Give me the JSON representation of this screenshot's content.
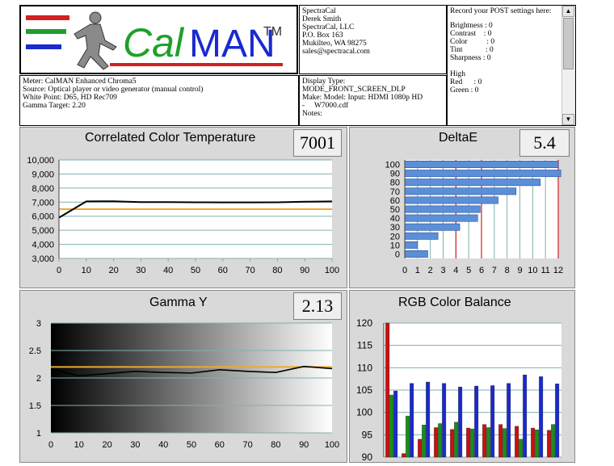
{
  "header": {
    "logo_text_cal": "Cal",
    "logo_text_man": "MAN",
    "logo_tm": "TM",
    "contact": [
      "SpectraCal",
      "Derek Smith",
      "SpectraCal, LLC",
      "P.O. Box 163",
      "Mukilteo, WA 98275",
      "sales@spectracal.com"
    ],
    "post_settings_title": "Record your POST settings here:",
    "post_settings": [
      "Brightness : 0",
      "Contrast    : 0",
      "Color          : 0",
      "Tint            : 0",
      "Sharpness : 0",
      "",
      "High",
      "Red      : 0",
      "Green : 0"
    ],
    "meter_info": [
      "Meter: CalMAN Enhanced Chroma5",
      "Source: Optical player or video generator (manual control)",
      "White Point: D65, HD Rec709",
      "Gamma Target: 2.20"
    ],
    "display_info": [
      "Display Type:",
      "MODE_FRONT_SCREEN_DLP",
      "Make: Model: Input: HDMI 1080p HD",
      "-     W7000.cdf",
      "Notes:"
    ]
  },
  "colors": {
    "panel_bg": "#d9d9d9",
    "grid": "#7fb0b0",
    "target": "#f0a830",
    "line": "#000000",
    "bar_blue": "#5b8fd8",
    "red_line": "#d42020",
    "rgb_red": "#cc1010",
    "rgb_green": "#189018",
    "rgb_blue": "#1a2ad0"
  },
  "panels": {
    "cct": {
      "title": "Correlated Color Temperature",
      "readout": "7001"
    },
    "deltae": {
      "title": "DeltaE",
      "readout": "5.4"
    },
    "gamma": {
      "title": "Gamma Y",
      "readout": "2.13"
    },
    "rgb": {
      "title": "RGB Color Balance"
    }
  },
  "chart_data": [
    {
      "type": "line",
      "title": "Correlated Color Temperature",
      "x": [
        0,
        10,
        20,
        30,
        40,
        50,
        60,
        70,
        80,
        90,
        100
      ],
      "xticks": [
        "0",
        "10",
        "20",
        "30",
        "40",
        "50",
        "60",
        "70",
        "80",
        "90",
        "100"
      ],
      "yticks": [
        "3,000",
        "4,000",
        "5,000",
        "6,000",
        "7,000",
        "8,000",
        "9,000",
        "10,000"
      ],
      "ylim": [
        3000,
        10000
      ],
      "series": [
        {
          "values": [
            5900,
            7050,
            7060,
            7000,
            7000,
            6990,
            6980,
            6980,
            6990,
            7030,
            7050
          ]
        }
      ],
      "target": 6500
    },
    {
      "type": "bar",
      "title": "DeltaE",
      "categories": [
        "0",
        "10",
        "20",
        "30",
        "40",
        "50",
        "60",
        "70",
        "80",
        "90",
        "100"
      ],
      "values": [
        1.8,
        1.0,
        2.6,
        4.3,
        5.7,
        5.9,
        7.3,
        8.7,
        10.6,
        12.2,
        12.0
      ],
      "xticks": [
        "0",
        "1",
        "2",
        "3",
        "4",
        "5",
        "6",
        "7",
        "8",
        "9",
        "10",
        "11",
        "12"
      ],
      "xlim": [
        0,
        12
      ],
      "thresholds": [
        4,
        6,
        12
      ]
    },
    {
      "type": "line",
      "title": "Gamma Y",
      "x": [
        0,
        10,
        20,
        30,
        40,
        50,
        60,
        70,
        80,
        90,
        100
      ],
      "xticks": [
        "0",
        "10",
        "20",
        "30",
        "40",
        "50",
        "60",
        "70",
        "80",
        "90",
        "100"
      ],
      "yticks": [
        "1",
        "1.5",
        "2",
        "2.5",
        "3"
      ],
      "ylim": [
        1,
        3
      ],
      "series": [
        {
          "values": [
            2.16,
            2.04,
            2.08,
            2.12,
            2.1,
            2.09,
            2.15,
            2.12,
            2.1,
            2.21,
            2.17
          ]
        }
      ],
      "target": 2.2
    },
    {
      "type": "bar",
      "title": "RGB Color Balance",
      "categories": [
        "0",
        "10",
        "20",
        "30",
        "40",
        "50",
        "60",
        "70",
        "80",
        "90",
        "100"
      ],
      "yticks": [
        "90",
        "95",
        "100",
        "105",
        "110",
        "115",
        "120"
      ],
      "ylim": [
        90,
        120
      ],
      "series": [
        {
          "values": [
            120.0,
            90.8,
            94.0,
            96.6,
            96.2,
            96.5,
            97.3,
            97.3,
            96.9,
            96.5,
            96.0
          ]
        },
        {
          "values": [
            103.9,
            99.2,
            97.2,
            97.5,
            97.8,
            96.3,
            96.6,
            96.4,
            94.0,
            96.1,
            97.3
          ]
        },
        {
          "values": [
            104.8,
            106.5,
            106.8,
            106.5,
            105.7,
            105.9,
            106.0,
            106.5,
            108.4,
            108.0,
            106.4
          ]
        }
      ]
    }
  ]
}
